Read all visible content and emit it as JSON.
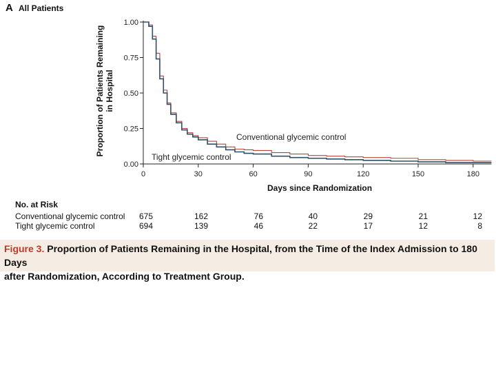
{
  "panel": {
    "letter": "A",
    "title": "All Patients"
  },
  "chart_data": {
    "type": "line",
    "ylabel_line1": "Proportion of Patients Remaining",
    "ylabel_line2": "in Hospital",
    "xlabel": "Days since Randomization",
    "x_ticks": [
      "0",
      "30",
      "60",
      "90",
      "120",
      "150",
      "180"
    ],
    "y_ticks": [
      "0.00",
      "0.25",
      "0.50",
      "0.75",
      "1.00"
    ],
    "xlim": [
      0,
      190
    ],
    "ylim": [
      0,
      1
    ],
    "series": [
      {
        "name": "Conventional glycemic control",
        "color": "#b5423c",
        "x": [
          0,
          3,
          5,
          7,
          9,
          11,
          13,
          15,
          18,
          21,
          24,
          27,
          30,
          35,
          40,
          45,
          50,
          55,
          60,
          70,
          80,
          90,
          100,
          110,
          120,
          135,
          150,
          165,
          180,
          190
        ],
        "y": [
          1.0,
          0.98,
          0.9,
          0.78,
          0.62,
          0.52,
          0.43,
          0.36,
          0.3,
          0.25,
          0.22,
          0.2,
          0.185,
          0.16,
          0.14,
          0.12,
          0.105,
          0.1,
          0.095,
          0.08,
          0.07,
          0.06,
          0.055,
          0.05,
          0.045,
          0.04,
          0.03,
          0.025,
          0.02,
          0.02
        ]
      },
      {
        "name": "Tight glycemic control",
        "color": "#2f4f66",
        "x": [
          0,
          3,
          5,
          7,
          9,
          11,
          13,
          15,
          18,
          21,
          24,
          27,
          30,
          35,
          40,
          45,
          50,
          55,
          60,
          70,
          80,
          90,
          100,
          110,
          120,
          135,
          150,
          165,
          180,
          190
        ],
        "y": [
          1.0,
          0.97,
          0.88,
          0.74,
          0.6,
          0.5,
          0.42,
          0.35,
          0.29,
          0.24,
          0.21,
          0.19,
          0.17,
          0.14,
          0.12,
          0.1,
          0.085,
          0.075,
          0.07,
          0.055,
          0.045,
          0.04,
          0.035,
          0.03,
          0.025,
          0.02,
          0.015,
          0.01,
          0.01,
          0.01
        ]
      }
    ],
    "annotations": [
      "Conventional glycemic control",
      "Tight glycemic control"
    ]
  },
  "risk_table": {
    "title": "No. at Risk",
    "rows": [
      {
        "label": "Conventional glycemic control",
        "values": [
          "675",
          "162",
          "76",
          "40",
          "29",
          "21",
          "12"
        ]
      },
      {
        "label": "Tight glycemic control",
        "values": [
          "694",
          "139",
          "46",
          "22",
          "17",
          "12",
          "8"
        ]
      }
    ]
  },
  "caption": {
    "figure_label": "Figure 3.",
    "text_line1": "Proportion of Patients Remaining in the Hospital, from the Time of the Index Admission to 180 Days",
    "text_line2": "after Randomization, According to Treatment Group."
  }
}
